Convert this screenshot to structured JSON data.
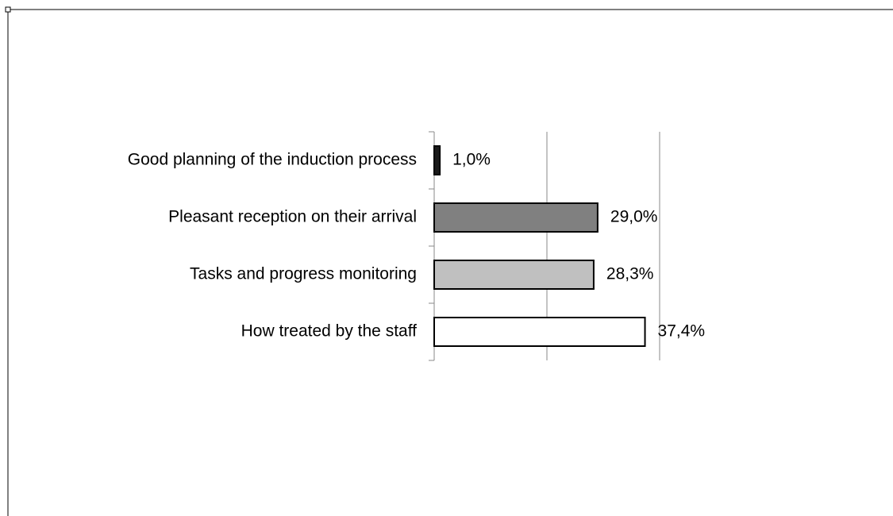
{
  "chart_data": {
    "type": "bar",
    "orientation": "horizontal",
    "categories": [
      "Good planning of the induction process",
      "Pleasant reception on their arrival",
      "Tasks and progress monitoring",
      "How treated by the staff"
    ],
    "values": [
      1.0,
      29.0,
      28.3,
      37.4
    ],
    "value_labels": [
      "1,0%",
      "29,0%",
      "28,3%",
      "37,4%"
    ],
    "colors": [
      "#1a1a1a",
      "#808080",
      "#c0c0c0",
      "#ffffff"
    ],
    "xlim": [
      0,
      40
    ],
    "xticks": [
      0,
      20,
      40
    ],
    "grid": true
  }
}
